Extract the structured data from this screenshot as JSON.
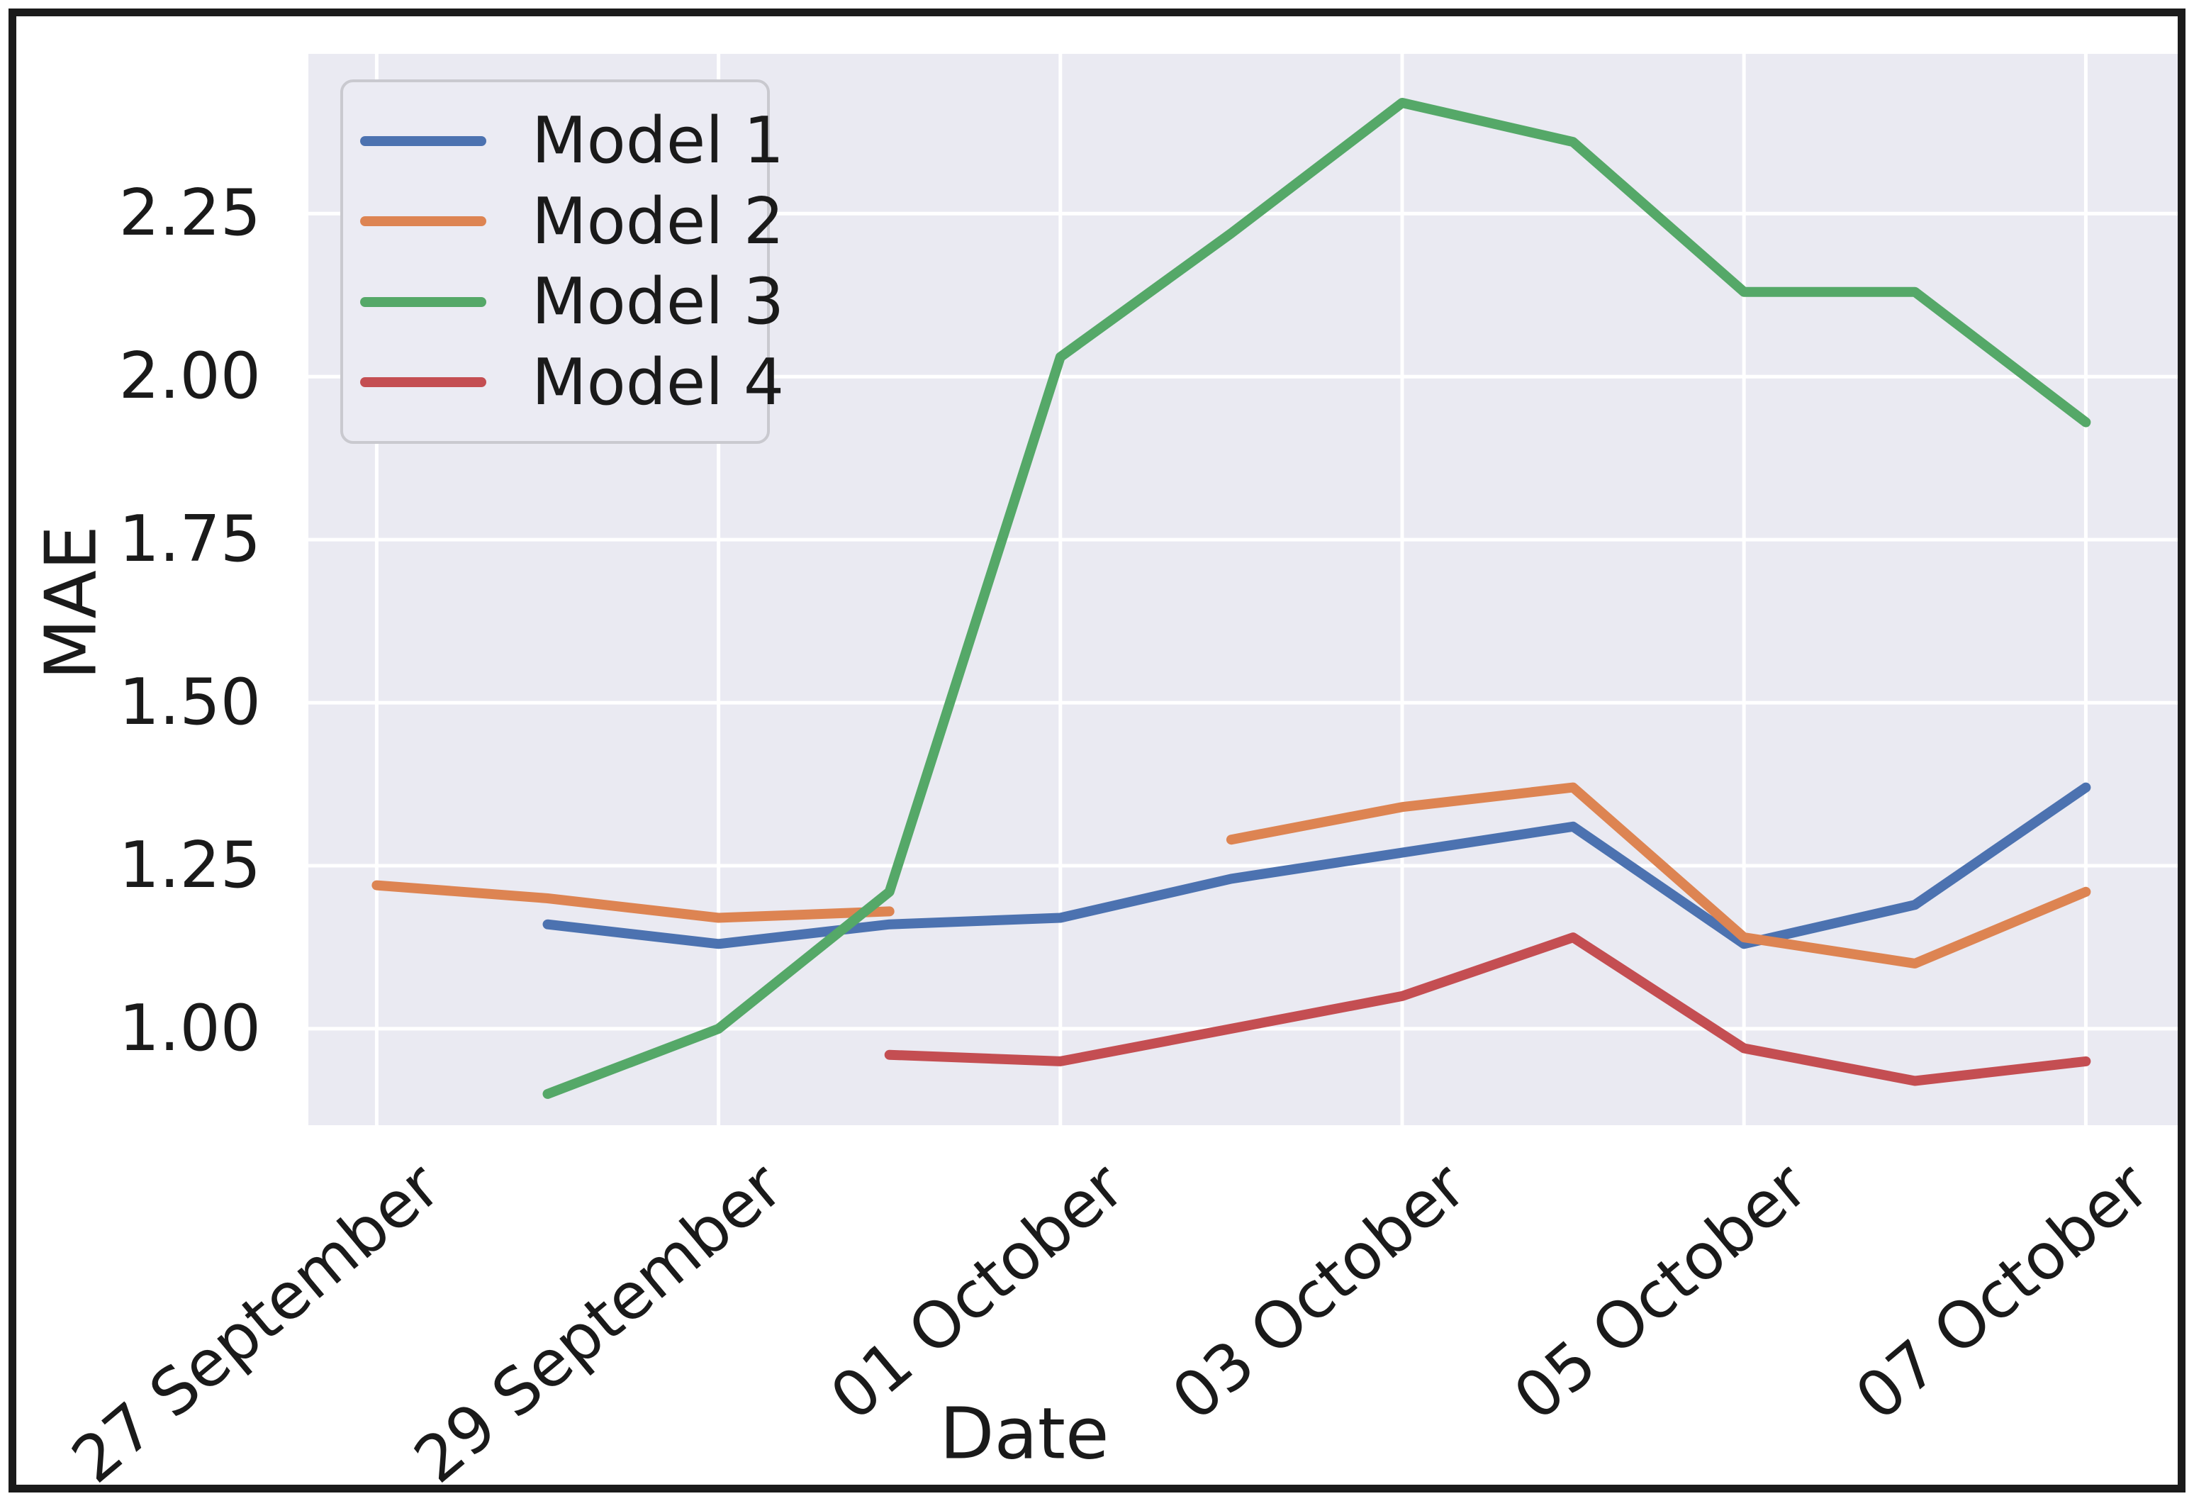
{
  "figure": {
    "background": "#ffffff",
    "plot_background": "#eaeaf2",
    "grid_color": "#ffffff",
    "frame_color": "#1b1b1b",
    "text_color": "#1a1a1a",
    "legend_background": "#ebebf3",
    "legend_border_color": "#c9c9cf"
  },
  "chart_data": {
    "type": "line",
    "title": "",
    "xlabel": "Date",
    "ylabel": "MAE",
    "grid": true,
    "legend_position": "upper-left",
    "x_day_sequence": [
      "27 September",
      "28 September",
      "29 September",
      "30 September",
      "01 October",
      "02 October",
      "03 October",
      "04 October",
      "05 October",
      "06 October",
      "07 October"
    ],
    "x_ticks": {
      "days": [
        0,
        2,
        4,
        6,
        8,
        10
      ],
      "labels": [
        "27 September",
        "29 September",
        "01 October",
        "03 October",
        "05 October",
        "07 October"
      ]
    },
    "y_ticks": {
      "values": [
        1.0,
        1.25,
        1.5,
        1.75,
        2.0,
        2.25
      ],
      "labels": [
        "1.00",
        "1.25",
        "1.50",
        "1.75",
        "2.00",
        "2.25"
      ]
    },
    "xlim": [
      -0.4,
      10.55
    ],
    "ylim": [
      0.852,
      2.495
    ],
    "series": [
      {
        "name": "Model 1",
        "color": "#4C72B0",
        "segments": [
          {
            "start_day": 1,
            "values": [
              1.16,
              1.13,
              1.16,
              1.17,
              1.23,
              1.27,
              1.31,
              1.13,
              1.19,
              1.37
            ]
          }
        ]
      },
      {
        "name": "Model 2",
        "color": "#DD8452",
        "segments": [
          {
            "start_day": 0,
            "values": [
              1.22,
              1.2,
              1.17,
              1.18
            ]
          },
          {
            "start_day": 5,
            "values": [
              1.29,
              1.34,
              1.37,
              1.14,
              1.1,
              1.21
            ]
          }
        ]
      },
      {
        "name": "Model 3",
        "color": "#55A868",
        "segments": [
          {
            "start_day": 1,
            "values": [
              0.9,
              1.0,
              1.21,
              2.03,
              2.22,
              2.42,
              2.36,
              2.13,
              2.13,
              1.93
            ]
          }
        ]
      },
      {
        "name": "Model 4",
        "color": "#C44E52",
        "segments": [
          {
            "start_day": 3,
            "values": [
              0.96,
              0.95,
              1.0,
              1.05,
              1.14,
              0.97,
              0.92,
              0.95
            ]
          }
        ]
      }
    ]
  }
}
